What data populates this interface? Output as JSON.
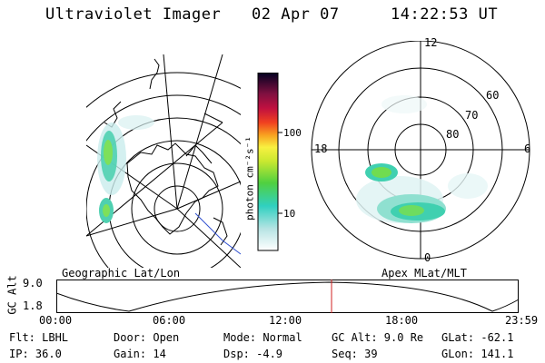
{
  "header": {
    "title": "Ultraviolet Imager",
    "date": "02 Apr 07",
    "time": "14:22:53 UT"
  },
  "colorbar": {
    "unit_label": "photon cm⁻²s⁻¹",
    "ticks": [
      "100",
      "10"
    ]
  },
  "left_panel": {
    "caption": "Geographic Lat/Lon"
  },
  "right_panel": {
    "caption": "Apex MLat/MLT",
    "mlt_labels": {
      "top": "12",
      "left": "18",
      "right": "6",
      "bottom": "0"
    },
    "lat_labels": [
      "60",
      "70",
      "80"
    ]
  },
  "timeline": {
    "ylabel": "GC Alt",
    "ticks_y": [
      "9.0",
      "1.8"
    ],
    "ticks_x": [
      "00:00",
      "06:00",
      "12:00",
      "18:00",
      "23:59"
    ]
  },
  "footer": {
    "col1": [
      "Flt: LBHL",
      "IP: 36.0"
    ],
    "col2": [
      "Door: Open",
      "Gain: 14"
    ],
    "col3": [
      "Mode: Normal",
      "Dsp:   -4.9"
    ],
    "col4": [
      "GC Alt: 9.0 Re",
      "Seq: 39"
    ],
    "col5": [
      "GLat: -62.1",
      "GLon: 141.1"
    ]
  }
}
